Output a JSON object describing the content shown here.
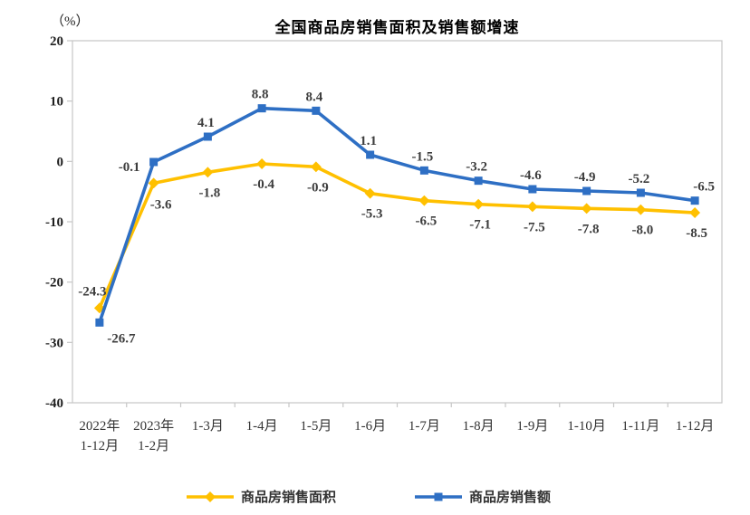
{
  "chart_data": {
    "type": "line",
    "title": "全国商品房销售面积及销售额增速",
    "unit_label": "（%）",
    "categories": [
      [
        "2022年",
        "1-12月"
      ],
      [
        "2023年",
        "1-2月"
      ],
      [
        "1-3月"
      ],
      [
        "1-4月"
      ],
      [
        "1-5月"
      ],
      [
        "1-6月"
      ],
      [
        "1-7月"
      ],
      [
        "1-8月"
      ],
      [
        "1-9月"
      ],
      [
        "1-10月"
      ],
      [
        "1-11月"
      ],
      [
        "1-12月"
      ]
    ],
    "series": [
      {
        "name": "商品房销售面积",
        "marker": "diamond",
        "color": "#ffc000",
        "values": [
          -24.3,
          -3.6,
          -1.8,
          -0.4,
          -0.9,
          -5.3,
          -6.5,
          -7.1,
          -7.5,
          -7.8,
          -8.0,
          -8.5
        ],
        "labels": [
          "-24.3",
          "-3.6",
          "-1.8",
          "-0.4",
          "-0.9",
          "-5.3",
          "-6.5",
          "-7.1",
          "-7.5",
          "-7.8",
          "-8.0",
          "-8.5"
        ]
      },
      {
        "name": "商品房销售额",
        "marker": "square",
        "color": "#2e6fc4",
        "values": [
          -26.7,
          -0.1,
          4.1,
          8.8,
          8.4,
          1.1,
          -1.5,
          -3.2,
          -4.6,
          -4.9,
          -5.2,
          -6.5
        ],
        "labels": [
          "-26.7",
          "-0.1",
          "4.1",
          "8.8",
          "8.4",
          "1.1",
          "-1.5",
          "-3.2",
          "-4.6",
          "-4.9",
          "-5.2",
          "-6.5"
        ]
      }
    ],
    "ylim": [
      -40,
      20
    ],
    "yticks": [
      20,
      10,
      0,
      -10,
      -20,
      -30,
      -40
    ],
    "grid": false,
    "legend_position": "bottom",
    "colors": {
      "border": "#c6c6c6",
      "y_tick_label": "#1f1f1f",
      "x_tick_label": "#333333",
      "data_label": "#3d3d3d",
      "legend_text": "#333333",
      "title": "#000000"
    }
  }
}
